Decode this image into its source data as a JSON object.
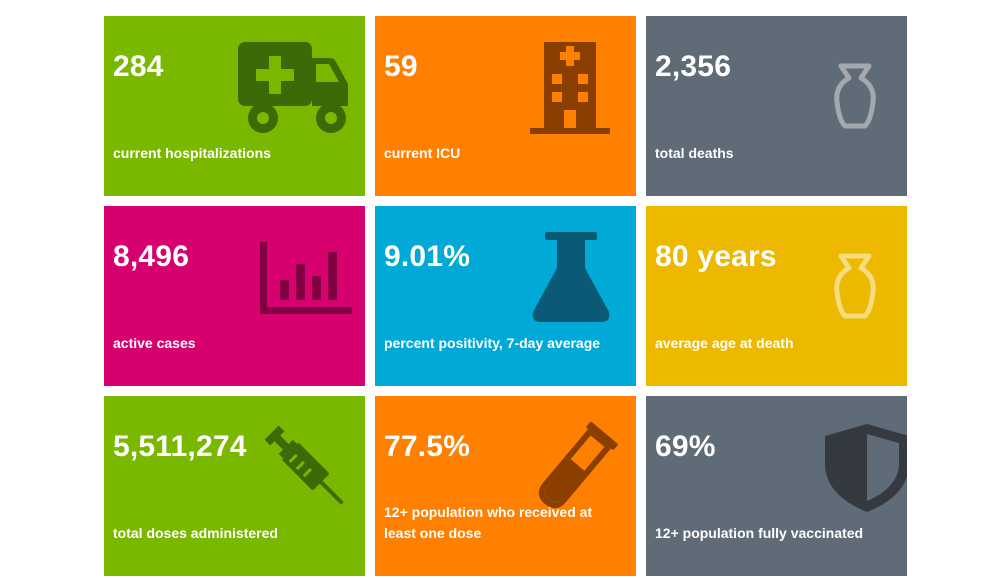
{
  "colors": {
    "green": "#7ab800",
    "orange": "#ff7f00",
    "gray": "#5f6b76",
    "magenta": "#d6006f",
    "blue": "#00a9d6",
    "yellow": "#ecb800"
  },
  "cards": [
    {
      "value": "284",
      "label": "current hospitalizations",
      "icon": "ambulance-icon"
    },
    {
      "value": "59",
      "label": "current ICU",
      "icon": "hospital-icon"
    },
    {
      "value": "2,356",
      "label": "total deaths",
      "icon": "urn-icon"
    },
    {
      "value": "8,496",
      "label": "active cases",
      "icon": "bar-chart-icon"
    },
    {
      "value": "9.01%",
      "label": "percent positivity, 7-day average",
      "icon": "flask-icon"
    },
    {
      "value": "80 years",
      "label": "average age at death",
      "icon": "urn-icon"
    },
    {
      "value": "5,511,274",
      "label": "total doses administered",
      "icon": "syringe-icon"
    },
    {
      "value": "77.5%",
      "label": "12+ population who received at least one dose",
      "icon": "test-tube-icon"
    },
    {
      "value": "69%",
      "label": "12+ population fully vaccinated",
      "icon": "shield-icon"
    }
  ]
}
